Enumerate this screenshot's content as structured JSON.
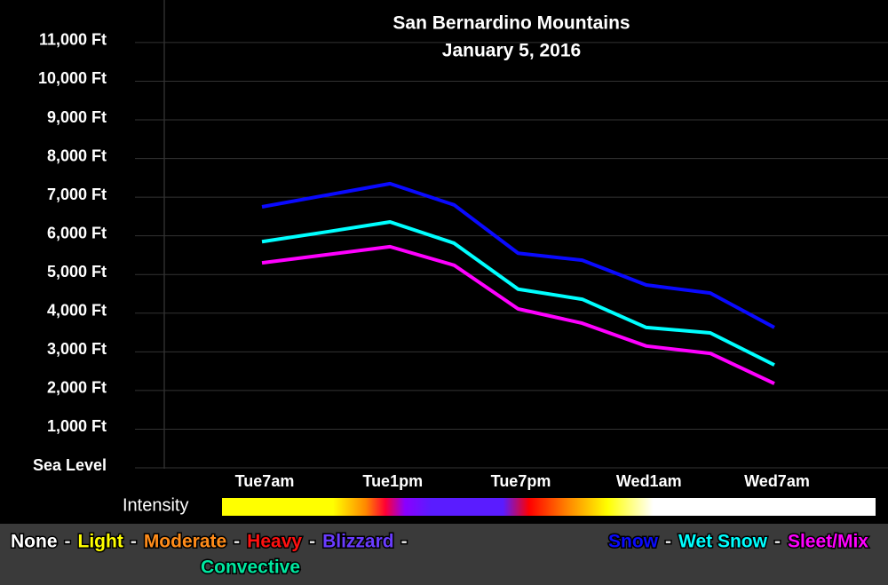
{
  "chart_data": {
    "type": "line",
    "title": "San Bernardino Mountains",
    "subtitle": "January 5, 2016",
    "categories": [
      "Tue7am",
      null,
      "Tue1pm",
      null,
      "Tue7pm",
      null,
      "Wed1am",
      null,
      "Wed7am"
    ],
    "series": [
      {
        "name": "Snow",
        "color": "#0a0aff",
        "values": [
          6750,
          7050,
          7350,
          6800,
          5550,
          5370,
          4730,
          4520,
          3630
        ]
      },
      {
        "name": "Wet Snow",
        "color": "#00ffff",
        "values": [
          5850,
          6100,
          6360,
          5810,
          4620,
          4360,
          3630,
          3490,
          2660
        ]
      },
      {
        "name": "Sleet/Mix",
        "color": "#ff00ff",
        "values": [
          5300,
          5510,
          5720,
          5240,
          4110,
          3740,
          3150,
          2960,
          2180
        ]
      }
    ],
    "ylim": [
      0,
      12100
    ],
    "yticks": [
      {
        "value": 0,
        "label": "Sea Level"
      },
      {
        "value": 1000,
        "label": "1,000 Ft"
      },
      {
        "value": 2000,
        "label": "2,000 Ft"
      },
      {
        "value": 3000,
        "label": "3,000 Ft"
      },
      {
        "value": 4000,
        "label": "4,000 Ft"
      },
      {
        "value": 5000,
        "label": "5,000 Ft"
      },
      {
        "value": 6000,
        "label": "6,000 Ft"
      },
      {
        "value": 7000,
        "label": "7,000 Ft"
      },
      {
        "value": 8000,
        "label": "8,000 Ft"
      },
      {
        "value": 9000,
        "label": "9,000 Ft"
      },
      {
        "value": 10000,
        "label": "10,000 Ft"
      },
      {
        "value": 11000,
        "label": "11,000 Ft"
      }
    ],
    "grid": true,
    "legend_separator": "-",
    "intensity_legend": {
      "label": "Intensity",
      "items": [
        {
          "name": "None",
          "color": "#ffffff"
        },
        {
          "name": "Light",
          "color": "#ffff00"
        },
        {
          "name": "Moderate",
          "color": "#ff8c1a"
        },
        {
          "name": "Heavy",
          "color": "#ff1010"
        },
        {
          "name": "Blizzard",
          "color": "#6a3cff"
        },
        {
          "name": "Convective",
          "color": "#00e8a0"
        }
      ]
    }
  }
}
